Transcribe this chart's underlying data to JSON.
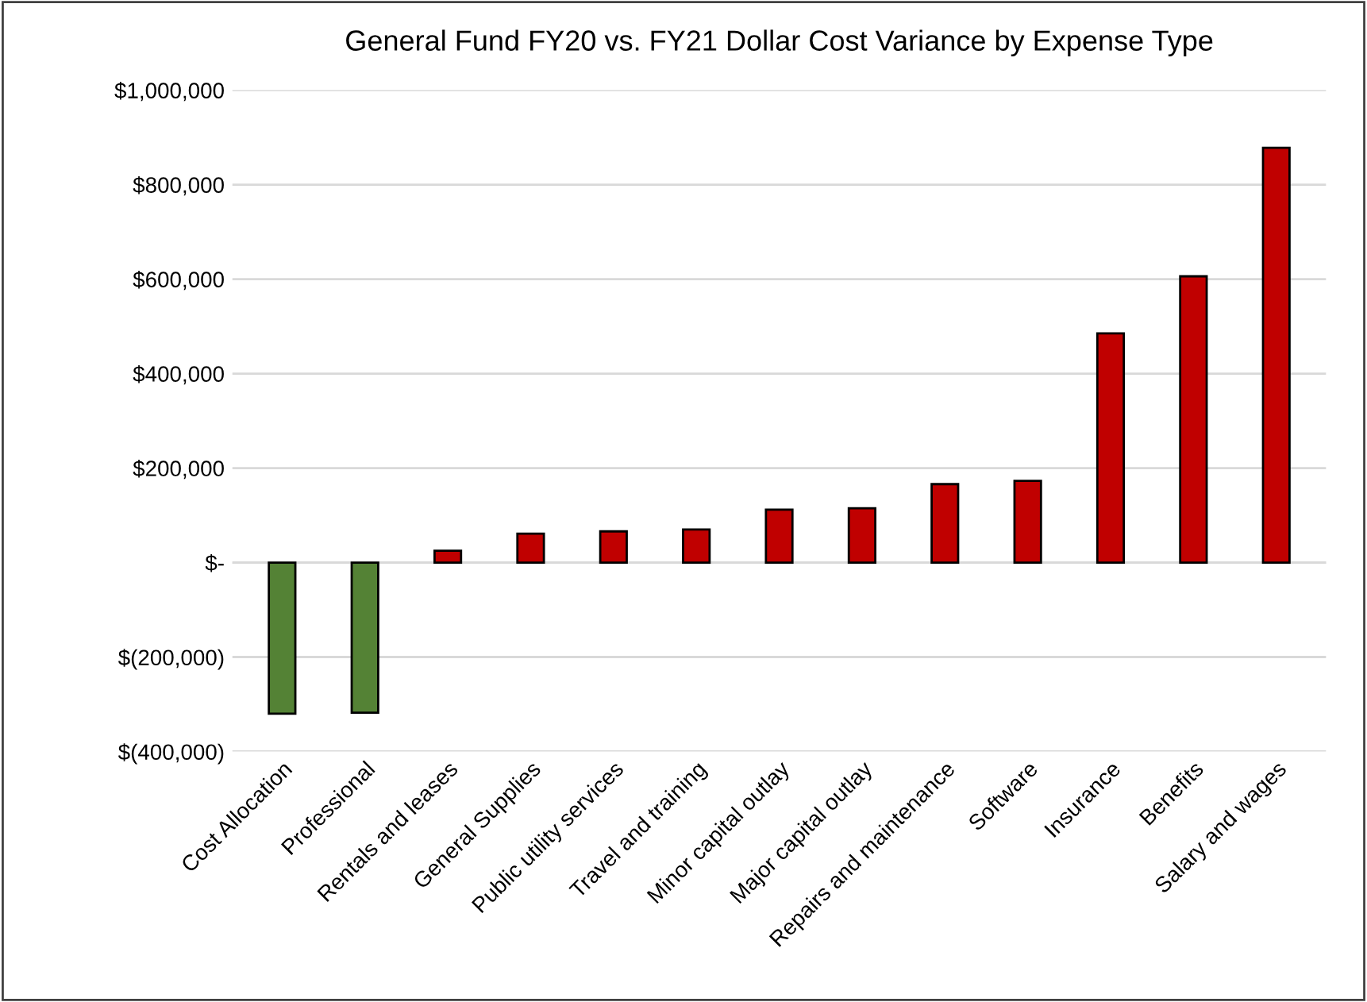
{
  "chart_data": {
    "type": "bar",
    "title": "General Fund FY20 vs. FY21 Dollar Cost Variance by Expense Type",
    "categories": [
      "Cost Allocation",
      "Professional",
      "Rentals and leases",
      "General Supplies",
      "Public utility services",
      "Travel and training",
      "Minor capital outlay",
      "Major capital outlay",
      "Repairs and maintenance",
      "Software",
      "Insurance",
      "Benefits",
      "Salary and wages"
    ],
    "values": [
      -320000,
      -318000,
      25000,
      61000,
      66000,
      70000,
      112000,
      115000,
      166000,
      173000,
      485000,
      606000,
      878000
    ],
    "colors": [
      "#548235",
      "#548235",
      "#c00000",
      "#c00000",
      "#c00000",
      "#c00000",
      "#c00000",
      "#c00000",
      "#c00000",
      "#c00000",
      "#c00000",
      "#c00000",
      "#c00000"
    ],
    "ylim": [
      -400000,
      1000000
    ],
    "yticks": [
      {
        "value": -400000,
        "label": "$(400,000)"
      },
      {
        "value": -200000,
        "label": "$(200,000)"
      },
      {
        "value": 0,
        "label": "$-"
      },
      {
        "value": 200000,
        "label": "$200,000"
      },
      {
        "value": 400000,
        "label": "$400,000"
      },
      {
        "value": 600000,
        "label": "$600,000"
      },
      {
        "value": 800000,
        "label": "$800,000"
      },
      {
        "value": 1000000,
        "label": "$1,000,000"
      }
    ],
    "grid": "y"
  }
}
